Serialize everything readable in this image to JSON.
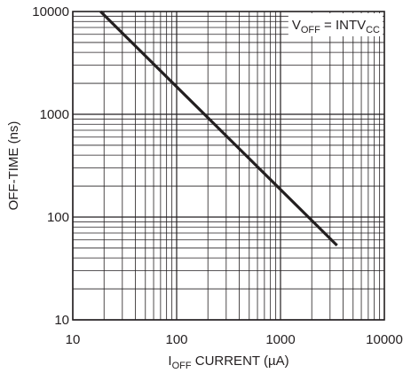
{
  "chart_data": {
    "type": "line",
    "title": "",
    "xlabel": {
      "main": "I",
      "subscript": "OFF",
      "rest": " CURRENT (µA)"
    },
    "ylabel": "OFF-TIME (ns)",
    "x_scale": "log",
    "y_scale": "log",
    "xlim": [
      10,
      10000
    ],
    "ylim": [
      10,
      10000
    ],
    "x_ticks": [
      "10",
      "100",
      "1000",
      "10000"
    ],
    "y_ticks": [
      "10",
      "100",
      "1000",
      "10000"
    ],
    "grid": true,
    "annotation": {
      "v": "V",
      "v_sub": "OFF",
      "eq": " = INTV",
      "cc_sub": "CC"
    },
    "series": [
      {
        "x": [
          18.5,
          3500
        ],
        "y": [
          10000,
          53
        ]
      }
    ]
  }
}
